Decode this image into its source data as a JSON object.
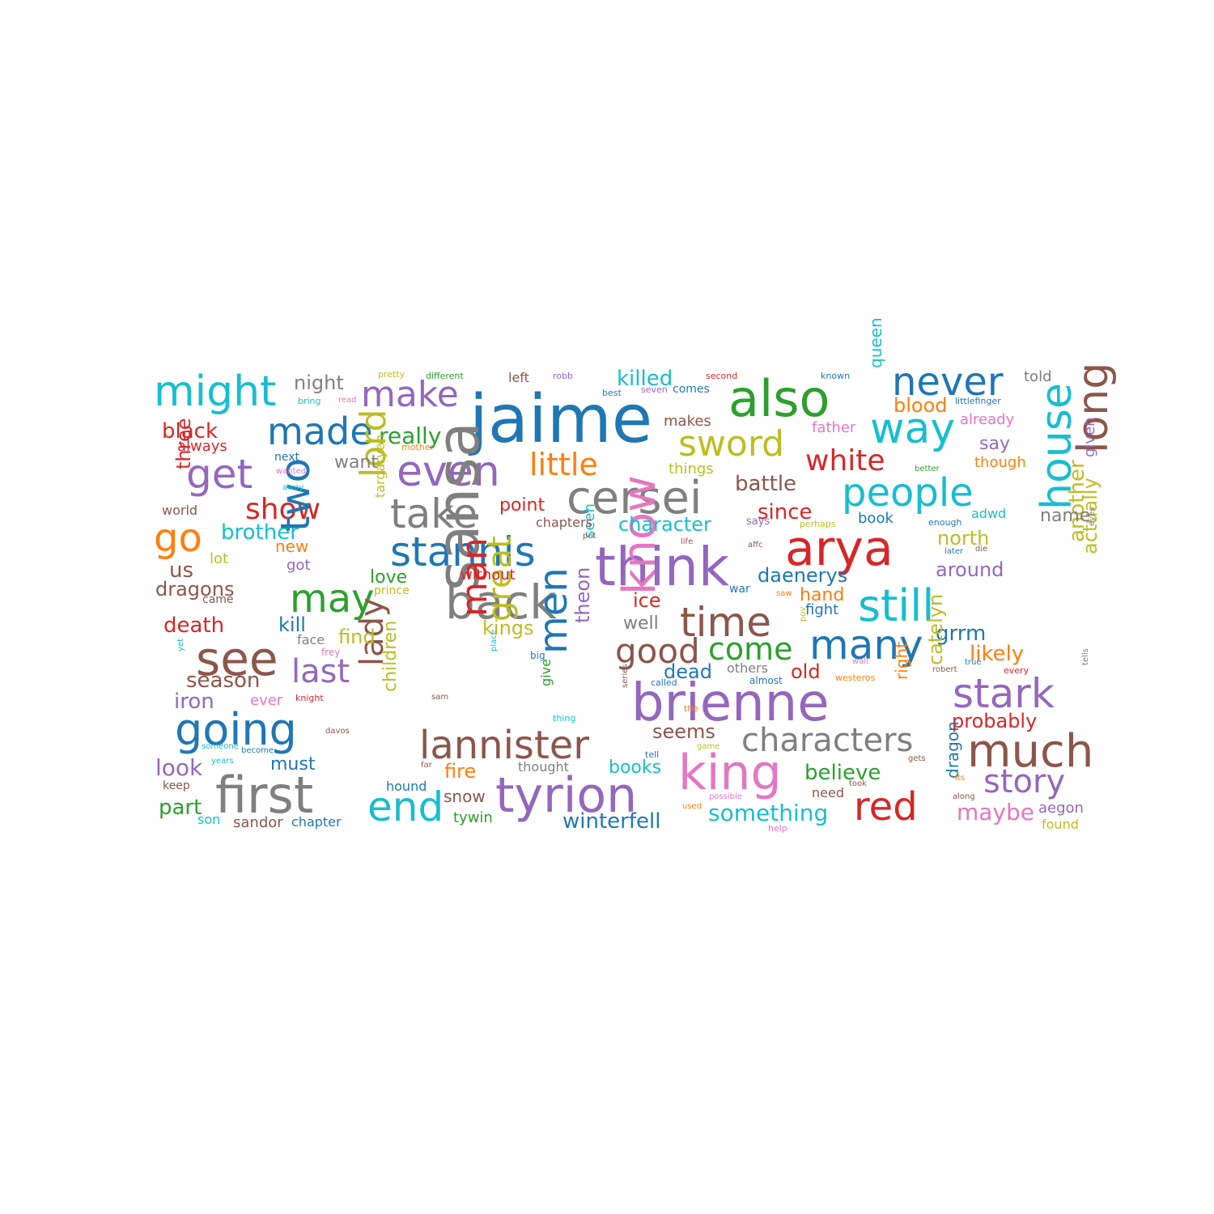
{
  "palette": {
    "blue": "#1f77b4",
    "orange": "#ff7f0e",
    "green": "#2ca02c",
    "red": "#d62728",
    "purple": "#9467bd",
    "brown": "#8c564b",
    "pink": "#e377c2",
    "gray": "#7f7f7f",
    "olive": "#bcbd22",
    "cyan": "#17becf"
  },
  "words": [
    {
      "text": "jaime",
      "color": "blue"
    },
    {
      "text": "also",
      "color": "green"
    },
    {
      "text": "might",
      "color": "cyan"
    },
    {
      "text": "make",
      "color": "purple"
    },
    {
      "text": "never",
      "color": "blue"
    },
    {
      "text": "night",
      "color": "gray"
    },
    {
      "text": "killed",
      "color": "cyan"
    },
    {
      "text": "made",
      "color": "blue"
    },
    {
      "text": "way",
      "color": "cyan"
    },
    {
      "text": "long",
      "color": "brown"
    },
    {
      "text": "sword",
      "color": "olive"
    },
    {
      "text": "even",
      "color": "purple"
    },
    {
      "text": "get",
      "color": "purple"
    },
    {
      "text": "really",
      "color": "green"
    },
    {
      "text": "little",
      "color": "orange"
    },
    {
      "text": "white",
      "color": "red"
    },
    {
      "text": "black",
      "color": "red"
    },
    {
      "text": "cersei",
      "color": "gray"
    },
    {
      "text": "people",
      "color": "cyan"
    },
    {
      "text": "take",
      "color": "gray"
    },
    {
      "text": "show",
      "color": "red"
    },
    {
      "text": "lord",
      "color": "olive"
    },
    {
      "text": "go",
      "color": "orange"
    },
    {
      "text": "brother",
      "color": "cyan"
    },
    {
      "text": "stannis",
      "color": "blue"
    },
    {
      "text": "arya",
      "color": "red"
    },
    {
      "text": "think",
      "color": "purple"
    },
    {
      "text": "house",
      "color": "cyan"
    },
    {
      "text": "two",
      "color": "blue"
    },
    {
      "text": "may",
      "color": "green"
    },
    {
      "text": "back",
      "color": "gray"
    },
    {
      "text": "sansa",
      "color": "gray"
    },
    {
      "text": "still",
      "color": "cyan"
    },
    {
      "text": "time",
      "color": "brown"
    },
    {
      "text": "know",
      "color": "pink"
    },
    {
      "text": "man",
      "color": "red"
    },
    {
      "text": "see",
      "color": "brown"
    },
    {
      "text": "many",
      "color": "blue"
    },
    {
      "text": "come",
      "color": "green"
    },
    {
      "text": "good",
      "color": "brown"
    },
    {
      "text": "last",
      "color": "purple"
    },
    {
      "text": "men",
      "color": "blue"
    },
    {
      "text": "great",
      "color": "olive"
    },
    {
      "text": "brienne",
      "color": "purple"
    },
    {
      "text": "stark",
      "color": "purple"
    },
    {
      "text": "going",
      "color": "blue"
    },
    {
      "text": "lady",
      "color": "brown"
    },
    {
      "text": "characters",
      "color": "gray"
    },
    {
      "text": "much",
      "color": "brown"
    },
    {
      "text": "lannister",
      "color": "brown"
    },
    {
      "text": "first",
      "color": "gray"
    },
    {
      "text": "king",
      "color": "pink"
    },
    {
      "text": "tyrion",
      "color": "purple"
    },
    {
      "text": "end",
      "color": "cyan"
    },
    {
      "text": "red",
      "color": "red"
    },
    {
      "text": "story",
      "color": "purple"
    },
    {
      "text": "death",
      "color": "red"
    },
    {
      "text": "season",
      "color": "brown"
    },
    {
      "text": "iron",
      "color": "purple"
    },
    {
      "text": "look",
      "color": "purple"
    },
    {
      "text": "part",
      "color": "green"
    },
    {
      "text": "winterfell",
      "color": "blue"
    },
    {
      "text": "something",
      "color": "cyan"
    },
    {
      "text": "believe",
      "color": "green"
    },
    {
      "text": "probably",
      "color": "red"
    },
    {
      "text": "maybe",
      "color": "pink"
    },
    {
      "text": "daenerys",
      "color": "blue"
    },
    {
      "text": "character",
      "color": "cyan"
    },
    {
      "text": "battle",
      "color": "brown"
    },
    {
      "text": "since",
      "color": "red"
    },
    {
      "text": "north",
      "color": "olive"
    },
    {
      "text": "around",
      "color": "purple"
    },
    {
      "text": "another",
      "color": "olive"
    },
    {
      "text": "actually",
      "color": "olive"
    },
    {
      "text": "grrm",
      "color": "blue"
    },
    {
      "text": "likely",
      "color": "orange"
    },
    {
      "text": "catelyn",
      "color": "olive"
    },
    {
      "text": "theon",
      "color": "purple"
    },
    {
      "text": "children",
      "color": "olive"
    },
    {
      "text": "dragon",
      "color": "blue"
    },
    {
      "text": "blood",
      "color": "orange"
    },
    {
      "text": "told",
      "color": "gray"
    },
    {
      "text": "queen",
      "color": "cyan"
    },
    {
      "text": "already",
      "color": "pink"
    },
    {
      "text": "say",
      "color": "purple"
    },
    {
      "text": "though",
      "color": "orange"
    },
    {
      "text": "given",
      "color": "purple"
    },
    {
      "text": "father",
      "color": "pink"
    },
    {
      "text": "book",
      "color": "blue"
    },
    {
      "text": "adwd",
      "color": "cyan"
    },
    {
      "text": "name",
      "color": "gray"
    },
    {
      "text": "hand",
      "color": "orange"
    },
    {
      "text": "fight",
      "color": "blue"
    },
    {
      "text": "old",
      "color": "red"
    },
    {
      "text": "dead",
      "color": "blue"
    },
    {
      "text": "others",
      "color": "gray"
    },
    {
      "text": "seems",
      "color": "brown"
    },
    {
      "text": "well",
      "color": "gray"
    },
    {
      "text": "ice",
      "color": "red"
    },
    {
      "text": "kings",
      "color": "olive"
    },
    {
      "text": "find",
      "color": "olive"
    },
    {
      "text": "kill",
      "color": "blue"
    },
    {
      "text": "new",
      "color": "orange"
    },
    {
      "text": "got",
      "color": "purple"
    },
    {
      "text": "love",
      "color": "green"
    },
    {
      "text": "without",
      "color": "red"
    },
    {
      "text": "prince",
      "color": "olive"
    },
    {
      "text": "seen",
      "color": "cyan"
    },
    {
      "text": "point",
      "color": "red"
    },
    {
      "text": "chapters",
      "color": "brown"
    },
    {
      "text": "want",
      "color": "gray"
    },
    {
      "text": "things",
      "color": "olive"
    },
    {
      "text": "makes",
      "color": "brown"
    },
    {
      "text": "left",
      "color": "brown"
    },
    {
      "text": "pretty",
      "color": "olive"
    },
    {
      "text": "different",
      "color": "green"
    },
    {
      "text": "robb",
      "color": "purple"
    },
    {
      "text": "second",
      "color": "red"
    },
    {
      "text": "known",
      "color": "blue"
    },
    {
      "text": "best",
      "color": "blue"
    },
    {
      "text": "seven",
      "color": "purple"
    },
    {
      "text": "comes",
      "color": "blue"
    },
    {
      "text": "littlefinger",
      "color": "blue"
    },
    {
      "text": "better",
      "color": "green"
    },
    {
      "text": "enough",
      "color": "blue"
    },
    {
      "text": "says",
      "color": "purple"
    },
    {
      "text": "perhaps",
      "color": "olive"
    },
    {
      "text": "later",
      "color": "blue"
    },
    {
      "text": "die",
      "color": "brown"
    },
    {
      "text": "eyes",
      "color": "gray"
    },
    {
      "text": "life",
      "color": "brown"
    },
    {
      "text": "affc",
      "color": "brown"
    },
    {
      "text": "put",
      "color": "brown"
    },
    {
      "text": "war",
      "color": "blue"
    },
    {
      "text": "saw",
      "color": "orange"
    },
    {
      "text": "pov",
      "color": "olive"
    },
    {
      "text": "bring",
      "color": "cyan"
    },
    {
      "text": "read",
      "color": "pink"
    },
    {
      "text": "always",
      "color": "red"
    },
    {
      "text": "mother",
      "color": "orange"
    },
    {
      "text": "next",
      "color": "blue"
    },
    {
      "text": "wanted",
      "color": "pink"
    },
    {
      "text": "away",
      "color": "cyan"
    },
    {
      "text": "three",
      "color": "red"
    },
    {
      "text": "world",
      "color": "brown"
    },
    {
      "text": "targaryen",
      "color": "olive"
    },
    {
      "text": "lot",
      "color": "olive"
    },
    {
      "text": "us",
      "color": "brown"
    },
    {
      "text": "dragons",
      "color": "brown"
    },
    {
      "text": "came",
      "color": "brown"
    },
    {
      "text": "face",
      "color": "gray"
    },
    {
      "text": "frey",
      "color": "pink"
    },
    {
      "text": "yet",
      "color": "cyan"
    },
    {
      "text": "place",
      "color": "cyan"
    },
    {
      "text": "big",
      "color": "blue"
    },
    {
      "text": "ever",
      "color": "pink"
    },
    {
      "text": "knight",
      "color": "red"
    },
    {
      "text": "sam",
      "color": "brown"
    },
    {
      "text": "give",
      "color": "green"
    },
    {
      "text": "called",
      "color": "blue"
    },
    {
      "text": "almost",
      "color": "blue"
    },
    {
      "text": "westeros",
      "color": "orange"
    },
    {
      "text": "wall",
      "color": "pink"
    },
    {
      "text": "robert",
      "color": "brown"
    },
    {
      "text": "true",
      "color": "blue"
    },
    {
      "text": "every",
      "color": "red"
    },
    {
      "text": "tells",
      "color": "gray"
    },
    {
      "text": "right",
      "color": "orange"
    },
    {
      "text": "series",
      "color": "brown"
    },
    {
      "text": "the",
      "color": "orange"
    },
    {
      "text": "thing",
      "color": "cyan"
    },
    {
      "text": "davos",
      "color": "brown"
    },
    {
      "text": "someone",
      "color": "cyan"
    },
    {
      "text": "become",
      "color": "blue"
    },
    {
      "text": "years",
      "color": "cyan"
    },
    {
      "text": "must",
      "color": "blue"
    },
    {
      "text": "keep",
      "color": "brown"
    },
    {
      "text": "son",
      "color": "cyan"
    },
    {
      "text": "sandor",
      "color": "brown"
    },
    {
      "text": "chapter",
      "color": "blue"
    },
    {
      "text": "hound",
      "color": "blue"
    },
    {
      "text": "far",
      "color": "brown"
    },
    {
      "text": "fire",
      "color": "orange"
    },
    {
      "text": "snow",
      "color": "brown"
    },
    {
      "text": "thought",
      "color": "gray"
    },
    {
      "text": "books",
      "color": "cyan"
    },
    {
      "text": "tell",
      "color": "blue"
    },
    {
      "text": "game",
      "color": "olive"
    },
    {
      "text": "possible",
      "color": "pink"
    },
    {
      "text": "used",
      "color": "orange"
    },
    {
      "text": "gets",
      "color": "brown"
    },
    {
      "text": "need",
      "color": "brown"
    },
    {
      "text": "took",
      "color": "brown"
    },
    {
      "text": "its",
      "color": "orange"
    },
    {
      "text": "along",
      "color": "brown"
    },
    {
      "text": "tywin",
      "color": "green"
    },
    {
      "text": "help",
      "color": "pink"
    },
    {
      "text": "aegon",
      "color": "purple"
    },
    {
      "text": "found",
      "color": "olive"
    }
  ]
}
